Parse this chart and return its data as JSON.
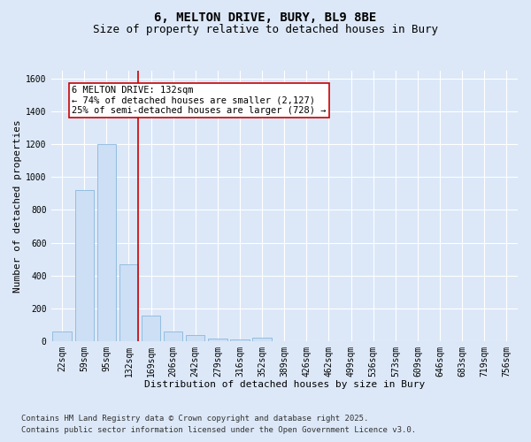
{
  "title_line1": "6, MELTON DRIVE, BURY, BL9 8BE",
  "title_line2": "Size of property relative to detached houses in Bury",
  "xlabel": "Distribution of detached houses by size in Bury",
  "ylabel": "Number of detached properties",
  "bar_labels": [
    "22sqm",
    "59sqm",
    "95sqm",
    "132sqm",
    "169sqm",
    "206sqm",
    "242sqm",
    "279sqm",
    "316sqm",
    "352sqm",
    "389sqm",
    "426sqm",
    "462sqm",
    "499sqm",
    "536sqm",
    "573sqm",
    "609sqm",
    "646sqm",
    "683sqm",
    "719sqm",
    "756sqm"
  ],
  "bar_values": [
    58,
    920,
    1200,
    470,
    155,
    60,
    35,
    15,
    10,
    20,
    0,
    0,
    0,
    0,
    0,
    0,
    0,
    0,
    0,
    0,
    0
  ],
  "bar_color": "#ccdff5",
  "bar_edge_color": "#7aaed6",
  "vline_color": "#cc0000",
  "annotation_text": "6 MELTON DRIVE: 132sqm\n← 74% of detached houses are smaller (2,127)\n25% of semi-detached houses are larger (728) →",
  "annotation_box_color": "#ffffff",
  "annotation_box_edge": "#cc0000",
  "ylim": [
    0,
    1650
  ],
  "yticks": [
    0,
    200,
    400,
    600,
    800,
    1000,
    1200,
    1400,
    1600
  ],
  "bg_color": "#dce8f8",
  "plot_bg_color": "#dce8f8",
  "footer_line1": "Contains HM Land Registry data © Crown copyright and database right 2025.",
  "footer_line2": "Contains public sector information licensed under the Open Government Licence v3.0.",
  "title_fontsize": 10,
  "subtitle_fontsize": 9,
  "axis_label_fontsize": 8,
  "tick_fontsize": 7,
  "annotation_fontsize": 7.5,
  "footer_fontsize": 6.5
}
